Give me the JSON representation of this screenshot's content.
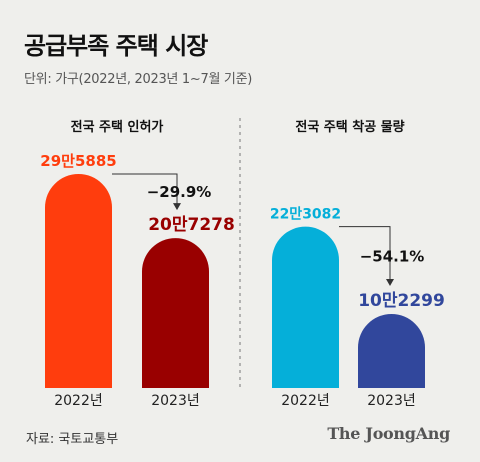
{
  "header": {
    "title": "공급부족 주택 시장",
    "subtitle": "단위: 가구(2022년, 2023년 1~7월 기준)"
  },
  "footer": {
    "source": "자료: 국토교통부",
    "brand": "The JoongAng"
  },
  "colors": {
    "background": "#efefec",
    "permit_2022": "#ff3d0d",
    "permit_2023": "#990000",
    "start_2022": "#05afd9",
    "start_2023": "#31479c"
  },
  "chart_data": [
    {
      "type": "bar",
      "title": "전국 주택 인허가",
      "categories": [
        "2022년",
        "2023년"
      ],
      "values": [
        295885,
        207278
      ],
      "value_labels": [
        "29만5885",
        "20만7278"
      ],
      "change_label": "−29.9%",
      "colors": [
        "#ff3d0d",
        "#990000"
      ]
    },
    {
      "type": "bar",
      "title": "전국 주택 착공 물량",
      "categories": [
        "2022년",
        "2023년"
      ],
      "values": [
        223082,
        102299
      ],
      "value_labels": [
        "22만3082",
        "10만2299"
      ],
      "change_label": "−54.1%",
      "colors": [
        "#05afd9",
        "#31479c"
      ]
    }
  ]
}
